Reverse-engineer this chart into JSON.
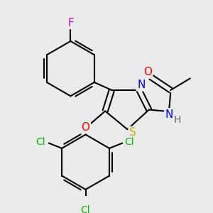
{
  "bg_color": "#ebebeb",
  "bond_color": "#000000",
  "bond_width": 1.5,
  "atom_colors": {
    "F": "#cc00cc",
    "O": "#ff0000",
    "N": "#0000ff",
    "S": "#ccaa00",
    "Cl": "#00bb00",
    "H": "#606060",
    "C": "#000000"
  },
  "font_size": 11,
  "small_font_size": 10
}
